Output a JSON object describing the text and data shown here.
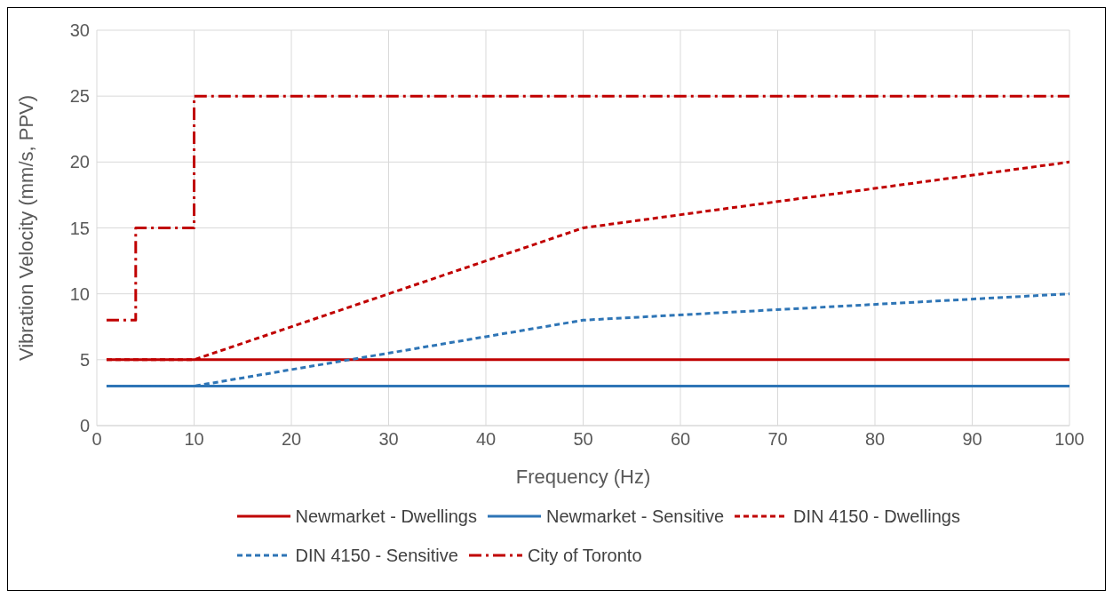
{
  "chart_data": {
    "type": "line",
    "xlabel": "Frequency (Hz)",
    "ylabel": "Vibration Velocity (mm/s, PPV)",
    "xlim": [
      0,
      100
    ],
    "xticks": [
      0,
      10,
      20,
      30,
      40,
      50,
      60,
      70,
      80,
      90,
      100
    ],
    "ylim": [
      0,
      30
    ],
    "yticks": [
      0,
      5,
      10,
      15,
      20,
      25,
      30
    ],
    "grid": true,
    "legend": "bottom",
    "marker": "none",
    "series": [
      {
        "name": "Newmarket - Dwellings",
        "color": "#c00000",
        "line_style": "solid",
        "x": [
          1,
          100
        ],
        "values": [
          5,
          5
        ]
      },
      {
        "name": "Newmarket - Sensitive",
        "color": "#2e75b6",
        "line_style": "solid",
        "x": [
          1,
          100
        ],
        "values": [
          3,
          3
        ]
      },
      {
        "name": "DIN 4150 - Dwellings",
        "color": "#c00000",
        "line_style": "dashed",
        "x": [
          1,
          10,
          50,
          100
        ],
        "values": [
          5,
          5,
          15,
          20
        ]
      },
      {
        "name": "DIN 4150 - Sensitive",
        "color": "#2e75b6",
        "line_style": "dashed",
        "x": [
          1,
          10,
          50,
          100
        ],
        "values": [
          3,
          3,
          8,
          10
        ]
      },
      {
        "name": "City of Toronto",
        "color": "#c00000",
        "line_style": "dashdot",
        "x": [
          1,
          4,
          4,
          10,
          10,
          100
        ],
        "values": [
          8,
          8,
          15,
          15,
          25,
          25
        ]
      }
    ]
  }
}
